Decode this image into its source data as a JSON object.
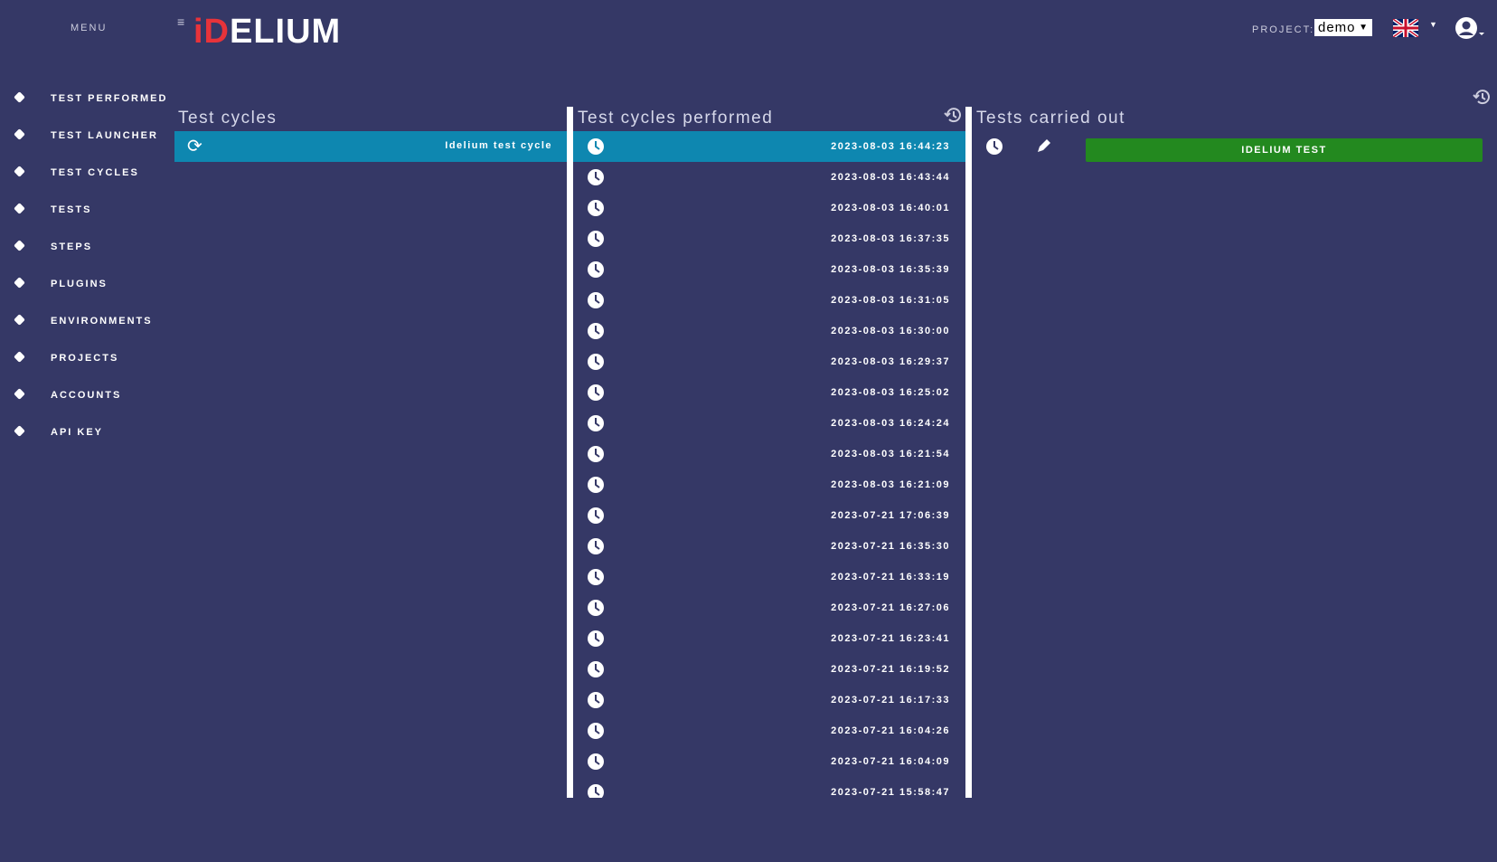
{
  "header": {
    "menu": "MENU",
    "logo_accent": "iD",
    "logo_main": "ELIUM",
    "project_label": "PROJECT:",
    "project": "demo"
  },
  "sidebar": [
    "TEST PERFORMED",
    "TEST LAUNCHER",
    "TEST CYCLES",
    "TESTS",
    "STEPS",
    "PLUGINS",
    "ENVIRONMENTS",
    "PROJECTS",
    "ACCOUNTS",
    "API KEY"
  ],
  "panels": {
    "cycles": {
      "title": "Test cycles",
      "items": [
        "Idelium test cycle"
      ]
    },
    "performed": {
      "title": "Test cycles performed",
      "items": [
        "2023-08-03 16:44:23",
        "2023-08-03 16:43:44",
        "2023-08-03 16:40:01",
        "2023-08-03 16:37:35",
        "2023-08-03 16:35:39",
        "2023-08-03 16:31:05",
        "2023-08-03 16:30:00",
        "2023-08-03 16:29:37",
        "2023-08-03 16:25:02",
        "2023-08-03 16:24:24",
        "2023-08-03 16:21:54",
        "2023-08-03 16:21:09",
        "2023-07-21 17:06:39",
        "2023-07-21 16:35:30",
        "2023-07-21 16:33:19",
        "2023-07-21 16:27:06",
        "2023-07-21 16:23:41",
        "2023-07-21 16:19:52",
        "2023-07-21 16:17:33",
        "2023-07-21 16:04:26",
        "2023-07-21 16:04:09",
        "2023-07-21 15:58:47"
      ]
    },
    "carried": {
      "title": "Tests carried out",
      "items": [
        "IDELIUM TEST"
      ]
    }
  }
}
